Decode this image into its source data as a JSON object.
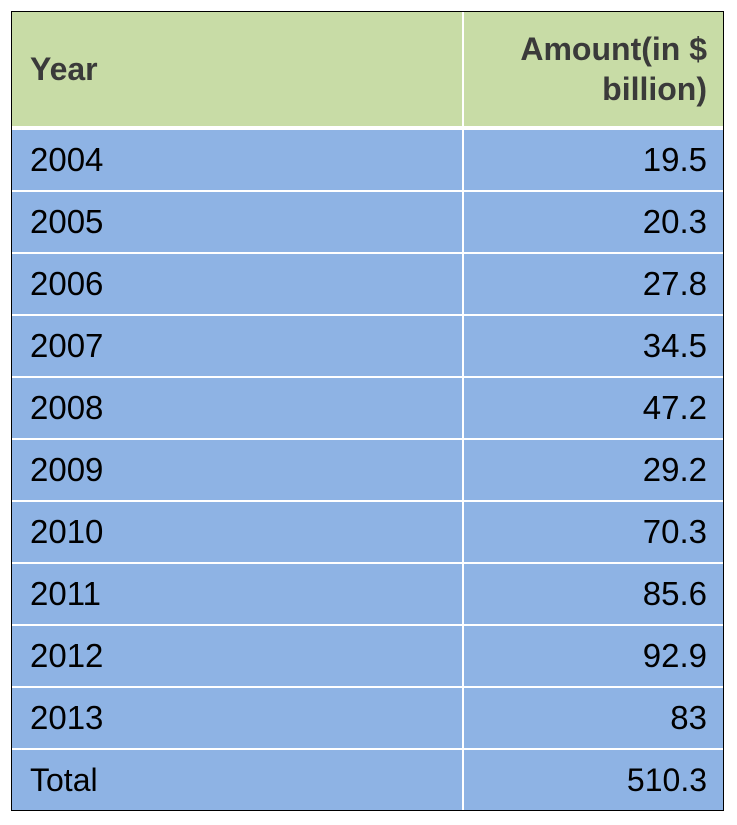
{
  "chart_data": {
    "type": "table",
    "columns": [
      "Year",
      "Amount(in $ billion)"
    ],
    "rows": [
      {
        "year": "2004",
        "amount": "19.5"
      },
      {
        "year": "2005",
        "amount": "20.3"
      },
      {
        "year": "2006",
        "amount": "27.8"
      },
      {
        "year": "2007",
        "amount": "34.5"
      },
      {
        "year": "2008",
        "amount": "47.2"
      },
      {
        "year": "2009",
        "amount": "29.2"
      },
      {
        "year": "2010",
        "amount": "70.3"
      },
      {
        "year": "2011",
        "amount": "85.6"
      },
      {
        "year": "2012",
        "amount": "92.9"
      },
      {
        "year": "2013",
        "amount": "83"
      }
    ],
    "total": {
      "label": "Total",
      "amount": "510.3"
    }
  },
  "colors": {
    "header_bg": "#c8dca6",
    "body_bg": "#8eb3e4",
    "grid_line": "#ffffff",
    "frame_border": "#000000"
  }
}
